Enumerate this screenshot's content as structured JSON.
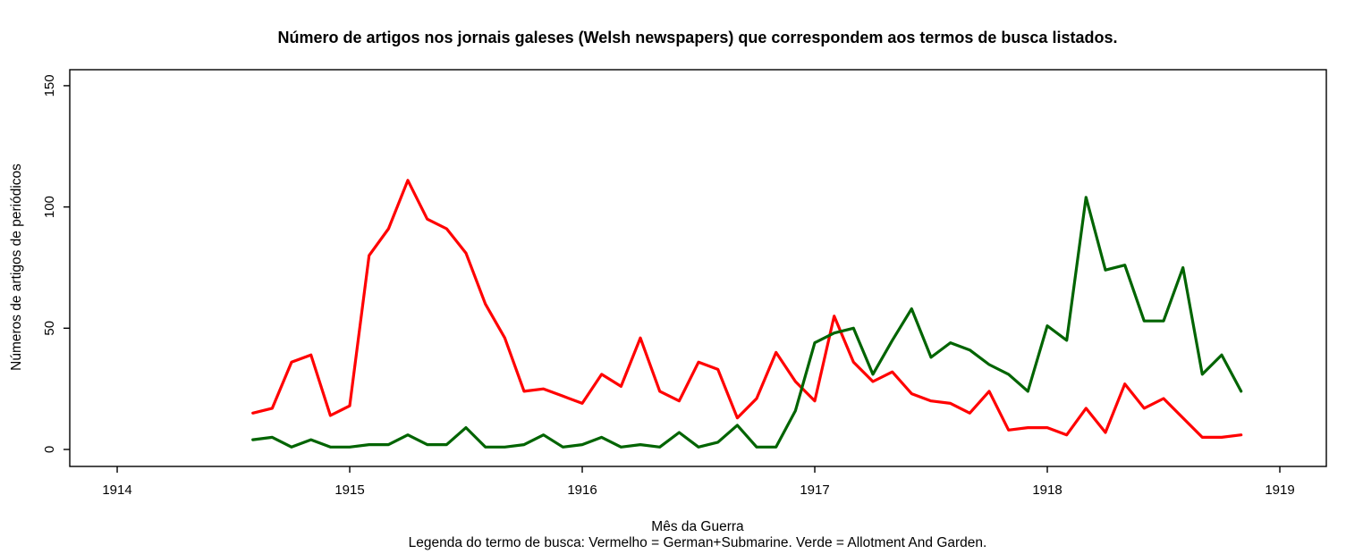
{
  "chart_data": {
    "type": "line",
    "title": "Número de artigos nos jornais galeses (Welsh newspapers) que correspondem aos termos de busca listados.",
    "xlabel": "Mês da Guerra",
    "ylabel": "Números de artigos de periódicos",
    "caption": "Legenda do termo de busca: Vermelho = German+Submarine. Verde = Allotment And Garden.",
    "grid": false,
    "legend_position": "caption-below",
    "x_ticks": [
      1914,
      1915,
      1916,
      1917,
      1918,
      1919
    ],
    "y_ticks": [
      0,
      50,
      100,
      150
    ],
    "x_range": [
      1913.796,
      1919.2
    ],
    "y_range": [
      -7,
      156.6
    ],
    "axis_color": "#000000",
    "background_color": "#ffffff",
    "months": [
      "1914-08",
      "1914-09",
      "1914-10",
      "1914-11",
      "1914-12",
      "1915-01",
      "1915-02",
      "1915-03",
      "1915-04",
      "1915-05",
      "1915-06",
      "1915-07",
      "1915-08",
      "1915-09",
      "1915-10",
      "1915-11",
      "1915-12",
      "1916-01",
      "1916-02",
      "1916-03",
      "1916-04",
      "1916-05",
      "1916-06",
      "1916-07",
      "1916-08",
      "1916-09",
      "1916-10",
      "1916-11",
      "1916-12",
      "1917-01",
      "1917-02",
      "1917-03",
      "1917-04",
      "1917-05",
      "1917-06",
      "1917-07",
      "1917-08",
      "1917-09",
      "1917-10",
      "1917-11",
      "1917-12",
      "1918-01",
      "1918-02",
      "1918-03",
      "1918-04",
      "1918-05",
      "1918-06",
      "1918-07",
      "1918-08",
      "1918-09",
      "1918-10",
      "1918-11"
    ],
    "series": [
      {
        "name": "German+Submarine",
        "legend_color_word": "Vermelho",
        "color": "#FF0000",
        "values": [
          15,
          17,
          36,
          39,
          14,
          18,
          80,
          91,
          111,
          95,
          91,
          81,
          60,
          46,
          24,
          25,
          22,
          19,
          31,
          26,
          46,
          24,
          20,
          36,
          33,
          13,
          21,
          40,
          28,
          20,
          55,
          36,
          28,
          32,
          23,
          20,
          19,
          15,
          24,
          8,
          9,
          9,
          6,
          17,
          7,
          27,
          17,
          21,
          13,
          5,
          5,
          6
        ]
      },
      {
        "name": "Allotment And Garden",
        "legend_color_word": "Verde",
        "color": "#006400",
        "values": [
          4,
          5,
          1,
          4,
          1,
          1,
          2,
          2,
          6,
          2,
          2,
          9,
          1,
          1,
          2,
          6,
          1,
          2,
          5,
          1,
          2,
          1,
          7,
          1,
          3,
          10,
          1,
          1,
          16,
          44,
          48,
          50,
          31,
          45,
          58,
          38,
          44,
          41,
          35,
          31,
          24,
          51,
          45,
          104,
          74,
          76,
          53,
          53,
          75,
          31,
          39,
          24
        ]
      }
    ]
  }
}
